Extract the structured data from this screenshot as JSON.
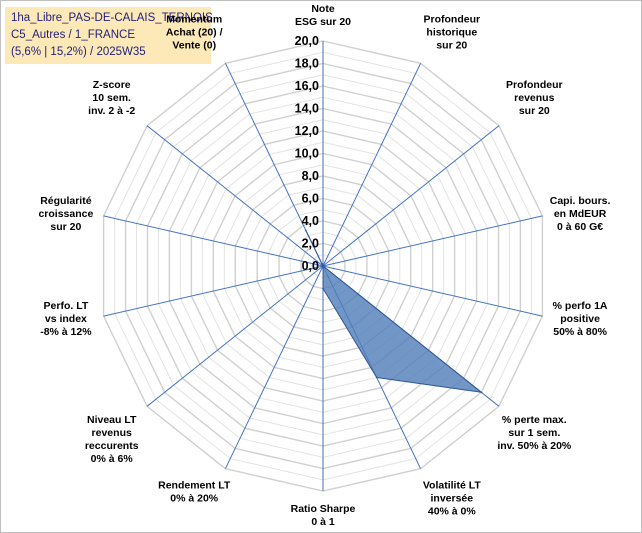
{
  "title_lines": [
    "1ha_Libre_PAS-DE-CALAIS_TERNOIS",
    "C5_Autres / 1_FRANCE",
    "(5,6% | 15,2%) / 2025W35"
  ],
  "chart_data": {
    "type": "radar",
    "r_min": 0,
    "r_max": 20,
    "r_step": 1,
    "ticks": [
      "0,0",
      "2,0",
      "4,0",
      "6,0",
      "8,0",
      "10,0",
      "12,0",
      "14,0",
      "16,0",
      "18,0",
      "20,0"
    ],
    "tick_values": [
      0,
      2,
      4,
      6,
      8,
      10,
      12,
      14,
      16,
      18,
      20
    ],
    "axes": [
      {
        "label": [
          "Note",
          "ESG sur 20"
        ]
      },
      {
        "label": [
          "Profondeur",
          "historique",
          "sur 20"
        ]
      },
      {
        "label": [
          "Profondeur",
          "revenus",
          "sur 20"
        ]
      },
      {
        "label": [
          "Capi. bours.",
          "en MdEUR",
          "0 à 60 G€"
        ]
      },
      {
        "label": [
          "% perfo 1A",
          "positive",
          "50% à 80%"
        ]
      },
      {
        "label": [
          "% perte max.",
          "sur 1 sem.",
          "inv. 50% à 20%"
        ]
      },
      {
        "label": [
          "Volatilité LT",
          "inversée",
          "40% à 0%"
        ]
      },
      {
        "label": [
          "Ratio Sharpe",
          "0 à 1"
        ]
      },
      {
        "label": [
          "Rendement LT",
          "0% à 20%"
        ]
      },
      {
        "label": [
          "Niveau LT",
          "revenus",
          "reccurents",
          "0% à 6%"
        ]
      },
      {
        "label": [
          "Perfo. LT",
          "vs index",
          "-8% à 12%"
        ]
      },
      {
        "label": [
          "Régularité",
          "croissance",
          "sur 20"
        ]
      },
      {
        "label": [
          "Z-score",
          "10 sem.",
          "inv. 2 à -2"
        ]
      },
      {
        "label": [
          "Momentum",
          "Achat (20) /",
          "Vente (0)"
        ]
      }
    ],
    "series": [
      {
        "values": [
          0,
          0,
          0,
          0,
          0,
          18,
          11,
          2,
          0,
          0,
          0,
          0,
          0,
          3.5
        ],
        "fill": "#4f7db8",
        "fill_opacity": 0.8,
        "stroke": "#2f5597"
      }
    ],
    "grid_color": "#d9d9d9",
    "spoke_color": "#4472c4",
    "grid": true,
    "legend": false
  }
}
